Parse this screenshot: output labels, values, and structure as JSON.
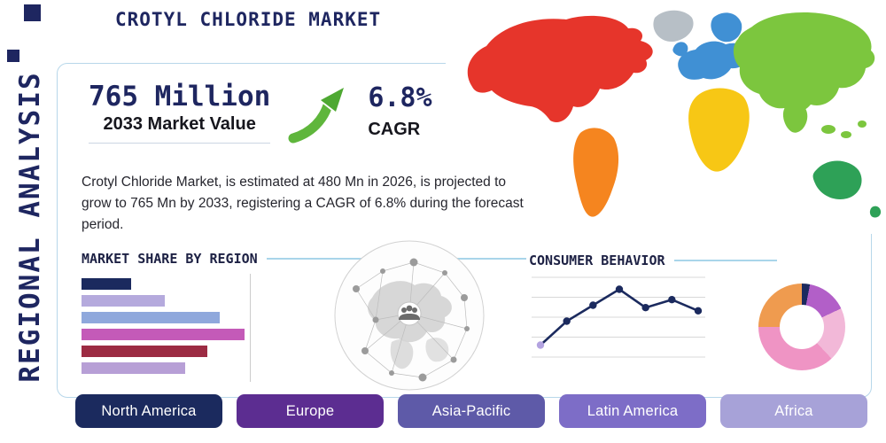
{
  "page": {
    "title": "CROTYL CHLORIDE MARKET",
    "vertical_label": "REGIONAL ANALYSIS"
  },
  "stats": {
    "market_value": "765 Million",
    "market_value_label": "2033 Market Value",
    "cagr_value": "6.8%",
    "cagr_label": "CAGR",
    "description": "Crotyl Chloride Market, is estimated at 480 Mn in 2026, is projected to grow to 765 Mn by 2033, registering a CAGR of 6.8% during the forecast period."
  },
  "sections": {
    "market_share_title": "MARKET SHARE BY REGION",
    "consumer_behavior_title": "CONSUMER BEHAVIOR"
  },
  "icons": {
    "growth_arrow": "growth-arrow-icon",
    "network_globe": "network-globe-illustration",
    "world_map": "world-map-illustration"
  },
  "theme": {
    "accent_navy": "#1e2660",
    "panel_border": "#b7d7ea",
    "arrow_green": "#5fb63c"
  },
  "footer": {
    "buttons": [
      {
        "label": "North America",
        "color": "#1b2a5e"
      },
      {
        "label": "Europe",
        "color": "#5c2d91"
      },
      {
        "label": "Asia-Pacific",
        "color": "#5e5aa8"
      },
      {
        "label": "Latin America",
        "color": "#7d6dc7"
      },
      {
        "label": "Africa",
        "color": "#a7a2d8"
      }
    ]
  },
  "chart_data": [
    {
      "type": "bar",
      "title": "Market Share by Region",
      "orientation": "horizontal",
      "categories": [
        "",
        "",
        "",
        "",
        "",
        ""
      ],
      "values": [
        29,
        49,
        81,
        96,
        74,
        61
      ],
      "xlim": [
        0,
        100
      ],
      "colors": [
        "#1b2a5e",
        "#b5aadd",
        "#8fa8dc",
        "#c45ab8",
        "#9c2b43",
        "#b79fd6"
      ],
      "grid": "single vertical gridline at right edge",
      "note": "values estimated as relative bar lengths; no axis labels shown"
    },
    {
      "type": "line",
      "title": "Consumer Behavior",
      "x": [
        1,
        2,
        3,
        4,
        5,
        6,
        7
      ],
      "values": [
        15,
        45,
        65,
        85,
        62,
        72,
        58
      ],
      "ylim": [
        0,
        100
      ],
      "line_color": "#1b2a5e",
      "first_point_color": "#b3a3e0",
      "grid": true,
      "note": "values estimated from gridlines; no axis labels shown"
    },
    {
      "type": "pie",
      "donut": true,
      "labels": [
        "",
        "",
        "",
        "",
        ""
      ],
      "values": [
        3,
        15,
        20,
        37,
        25
      ],
      "colors": [
        "#1c2a5e",
        "#b25fc8",
        "#f2b8d8",
        "#ef94c4",
        "#ef9b4f"
      ],
      "note": "slice shares estimated; no labels shown"
    }
  ]
}
